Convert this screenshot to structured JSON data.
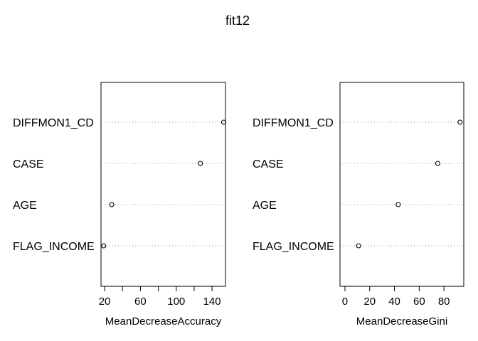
{
  "title": "fit12",
  "chart_data": [
    {
      "type": "scatter",
      "subtype": "dotchart",
      "xlabel": "MeanDecreaseAccuracy",
      "xlim": [
        16,
        155
      ],
      "xticks": [
        20,
        40,
        60,
        80,
        100,
        120,
        140
      ],
      "xtick_labels": [
        "20",
        "",
        "60",
        "",
        "100",
        "",
        "140"
      ],
      "categories": [
        "DIFFMON1_CD",
        "CASE",
        "AGE",
        "FLAG_INCOME"
      ],
      "values": [
        153,
        127,
        28,
        19
      ],
      "grid": "dotted horizontal"
    },
    {
      "type": "scatter",
      "subtype": "dotchart",
      "xlabel": "MeanDecreaseGini",
      "xlim": [
        -4,
        96
      ],
      "xticks": [
        0,
        20,
        40,
        60,
        80
      ],
      "xtick_labels": [
        "0",
        "20",
        "40",
        "60",
        "80"
      ],
      "categories": [
        "DIFFMON1_CD",
        "CASE",
        "AGE",
        "FLAG_INCOME"
      ],
      "values": [
        93,
        75,
        43,
        11
      ],
      "grid": "dotted horizontal"
    }
  ]
}
